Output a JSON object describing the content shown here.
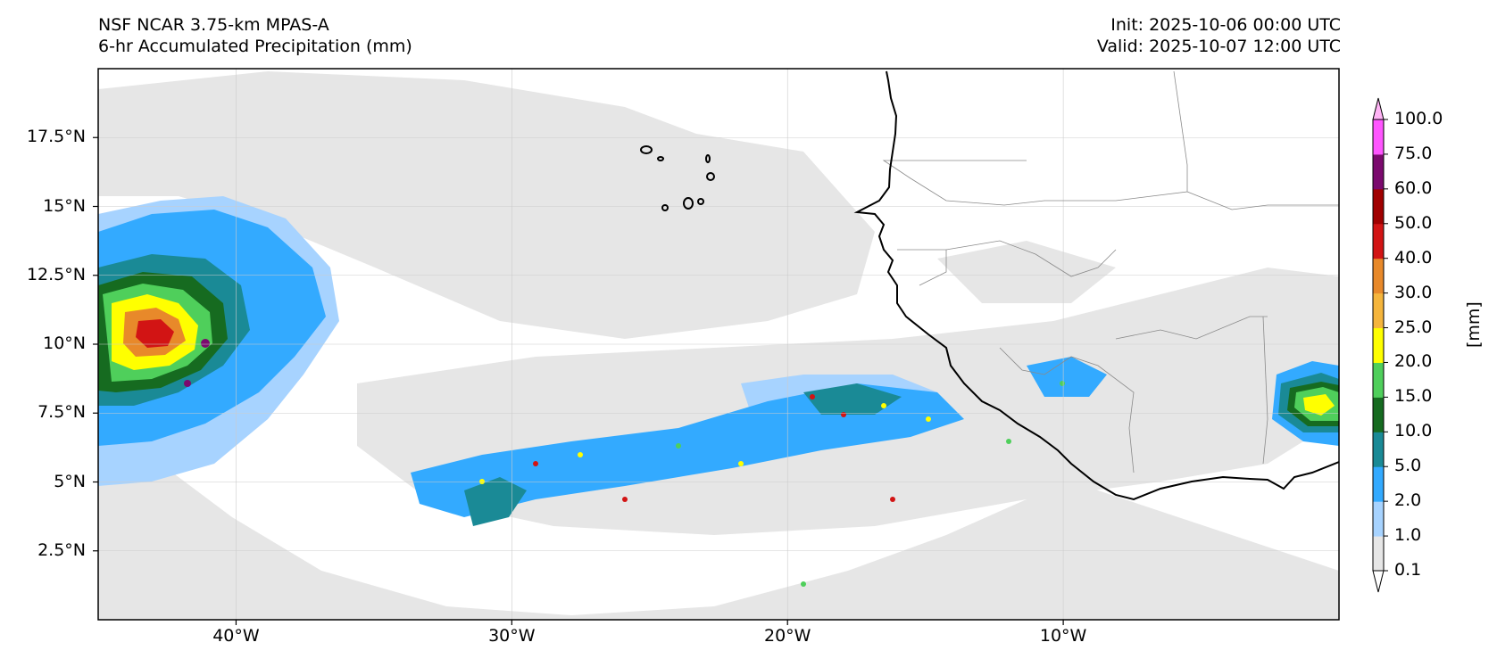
{
  "titles": {
    "model": "NSF NCAR 3.75-km MPAS-A",
    "field": "6-hr Accumulated Precipitation (mm)",
    "init": "Init: 2025-10-06 00:00 UTC",
    "valid": "Valid: 2025-10-07 12:00 UTC"
  },
  "map": {
    "lon_range": [
      -45,
      0
    ],
    "lat_range": [
      0,
      20
    ],
    "lon_ticks": [
      {
        "value": -40,
        "label": "40°W"
      },
      {
        "value": -30,
        "label": "30°W"
      },
      {
        "value": -20,
        "label": "20°W"
      },
      {
        "value": -10,
        "label": "10°W"
      }
    ],
    "lat_ticks": [
      {
        "value": 2.5,
        "label": "2.5°N"
      },
      {
        "value": 5,
        "label": "5°N"
      },
      {
        "value": 7.5,
        "label": "7.5°N"
      },
      {
        "value": 10,
        "label": "10°N"
      },
      {
        "value": 12.5,
        "label": "12.5°N"
      },
      {
        "value": 15,
        "label": "15°N"
      },
      {
        "value": 17.5,
        "label": "17.5°N"
      }
    ],
    "grid": true
  },
  "colorbar": {
    "unit": "[mm]",
    "levels": [
      "0.1",
      "1.0",
      "2.0",
      "5.0",
      "10.0",
      "15.0",
      "20.0",
      "25.0",
      "30.0",
      "40.0",
      "50.0",
      "60.0",
      "75.0",
      "100.0"
    ],
    "colors": [
      "#e6e6e6",
      "#a7d3ff",
      "#33aaff",
      "#1a8a96",
      "#166b20",
      "#4fcf5b",
      "#ffff00",
      "#f5b53c",
      "#e8892a",
      "#d21414",
      "#a00000",
      "#7b0a6e",
      "#ff55ff"
    ],
    "extend": "both"
  }
}
